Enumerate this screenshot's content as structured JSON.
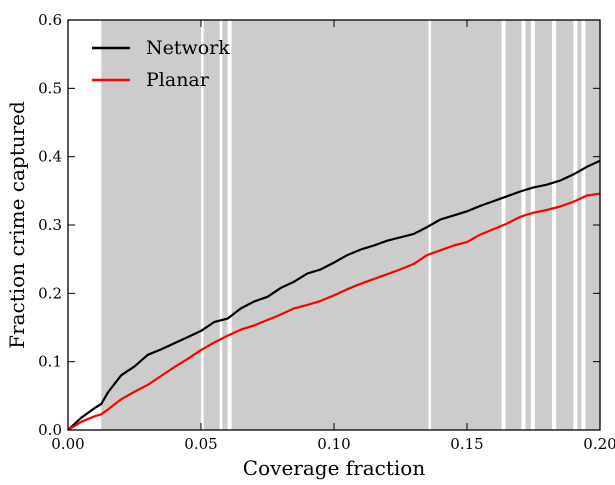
{
  "chart_data": {
    "type": "line",
    "xlabel": "Coverage fraction",
    "ylabel": "Fraction crime captured",
    "xlim": [
      0.0,
      0.2
    ],
    "ylim": [
      0.0,
      0.6
    ],
    "xticks": [
      "0.00",
      "0.05",
      "0.10",
      "0.15",
      "0.20"
    ],
    "yticks": [
      "0.0",
      "0.1",
      "0.2",
      "0.3",
      "0.4",
      "0.5",
      "0.6"
    ],
    "grid": false,
    "legend_position": "top-left",
    "shaded_intervals": [
      [
        0.0125,
        0.05
      ],
      [
        0.051,
        0.057
      ],
      [
        0.058,
        0.06
      ],
      [
        0.0615,
        0.1355
      ],
      [
        0.1365,
        0.163
      ],
      [
        0.1645,
        0.1705
      ],
      [
        0.172,
        0.174
      ],
      [
        0.1755,
        0.182
      ],
      [
        0.1835,
        0.19
      ],
      [
        0.1915,
        0.193
      ],
      [
        0.1945,
        0.2
      ]
    ],
    "shade_color": "#cccccc",
    "series": [
      {
        "name": "Network",
        "color": "#000000",
        "x": [
          0.0,
          0.005,
          0.01,
          0.0125,
          0.015,
          0.02,
          0.025,
          0.03,
          0.035,
          0.04,
          0.045,
          0.05,
          0.055,
          0.06,
          0.065,
          0.07,
          0.075,
          0.08,
          0.085,
          0.09,
          0.095,
          0.1,
          0.105,
          0.11,
          0.115,
          0.12,
          0.125,
          0.13,
          0.135,
          0.14,
          0.145,
          0.15,
          0.155,
          0.16,
          0.165,
          0.17,
          0.175,
          0.18,
          0.185,
          0.19,
          0.195,
          0.2
        ],
        "values": [
          0.0,
          0.018,
          0.032,
          0.038,
          0.055,
          0.08,
          0.093,
          0.11,
          0.118,
          0.127,
          0.136,
          0.145,
          0.158,
          0.163,
          0.178,
          0.188,
          0.195,
          0.208,
          0.217,
          0.229,
          0.235,
          0.245,
          0.256,
          0.264,
          0.27,
          0.277,
          0.282,
          0.287,
          0.297,
          0.308,
          0.314,
          0.32,
          0.328,
          0.335,
          0.342,
          0.349,
          0.355,
          0.359,
          0.365,
          0.374,
          0.385,
          0.394
        ]
      },
      {
        "name": "Planar",
        "color": "#ff0000",
        "x": [
          0.0,
          0.005,
          0.01,
          0.0125,
          0.015,
          0.02,
          0.025,
          0.03,
          0.035,
          0.04,
          0.045,
          0.05,
          0.055,
          0.06,
          0.065,
          0.07,
          0.075,
          0.08,
          0.085,
          0.09,
          0.095,
          0.1,
          0.105,
          0.11,
          0.115,
          0.12,
          0.125,
          0.13,
          0.135,
          0.14,
          0.145,
          0.15,
          0.155,
          0.16,
          0.165,
          0.17,
          0.175,
          0.18,
          0.185,
          0.19,
          0.195,
          0.2
        ],
        "values": [
          0.0,
          0.012,
          0.02,
          0.023,
          0.03,
          0.045,
          0.056,
          0.066,
          0.079,
          0.092,
          0.104,
          0.117,
          0.128,
          0.138,
          0.147,
          0.153,
          0.161,
          0.169,
          0.178,
          0.183,
          0.189,
          0.197,
          0.206,
          0.214,
          0.221,
          0.228,
          0.235,
          0.243,
          0.256,
          0.263,
          0.27,
          0.275,
          0.286,
          0.294,
          0.302,
          0.312,
          0.318,
          0.322,
          0.327,
          0.334,
          0.343,
          0.346
        ]
      }
    ]
  }
}
